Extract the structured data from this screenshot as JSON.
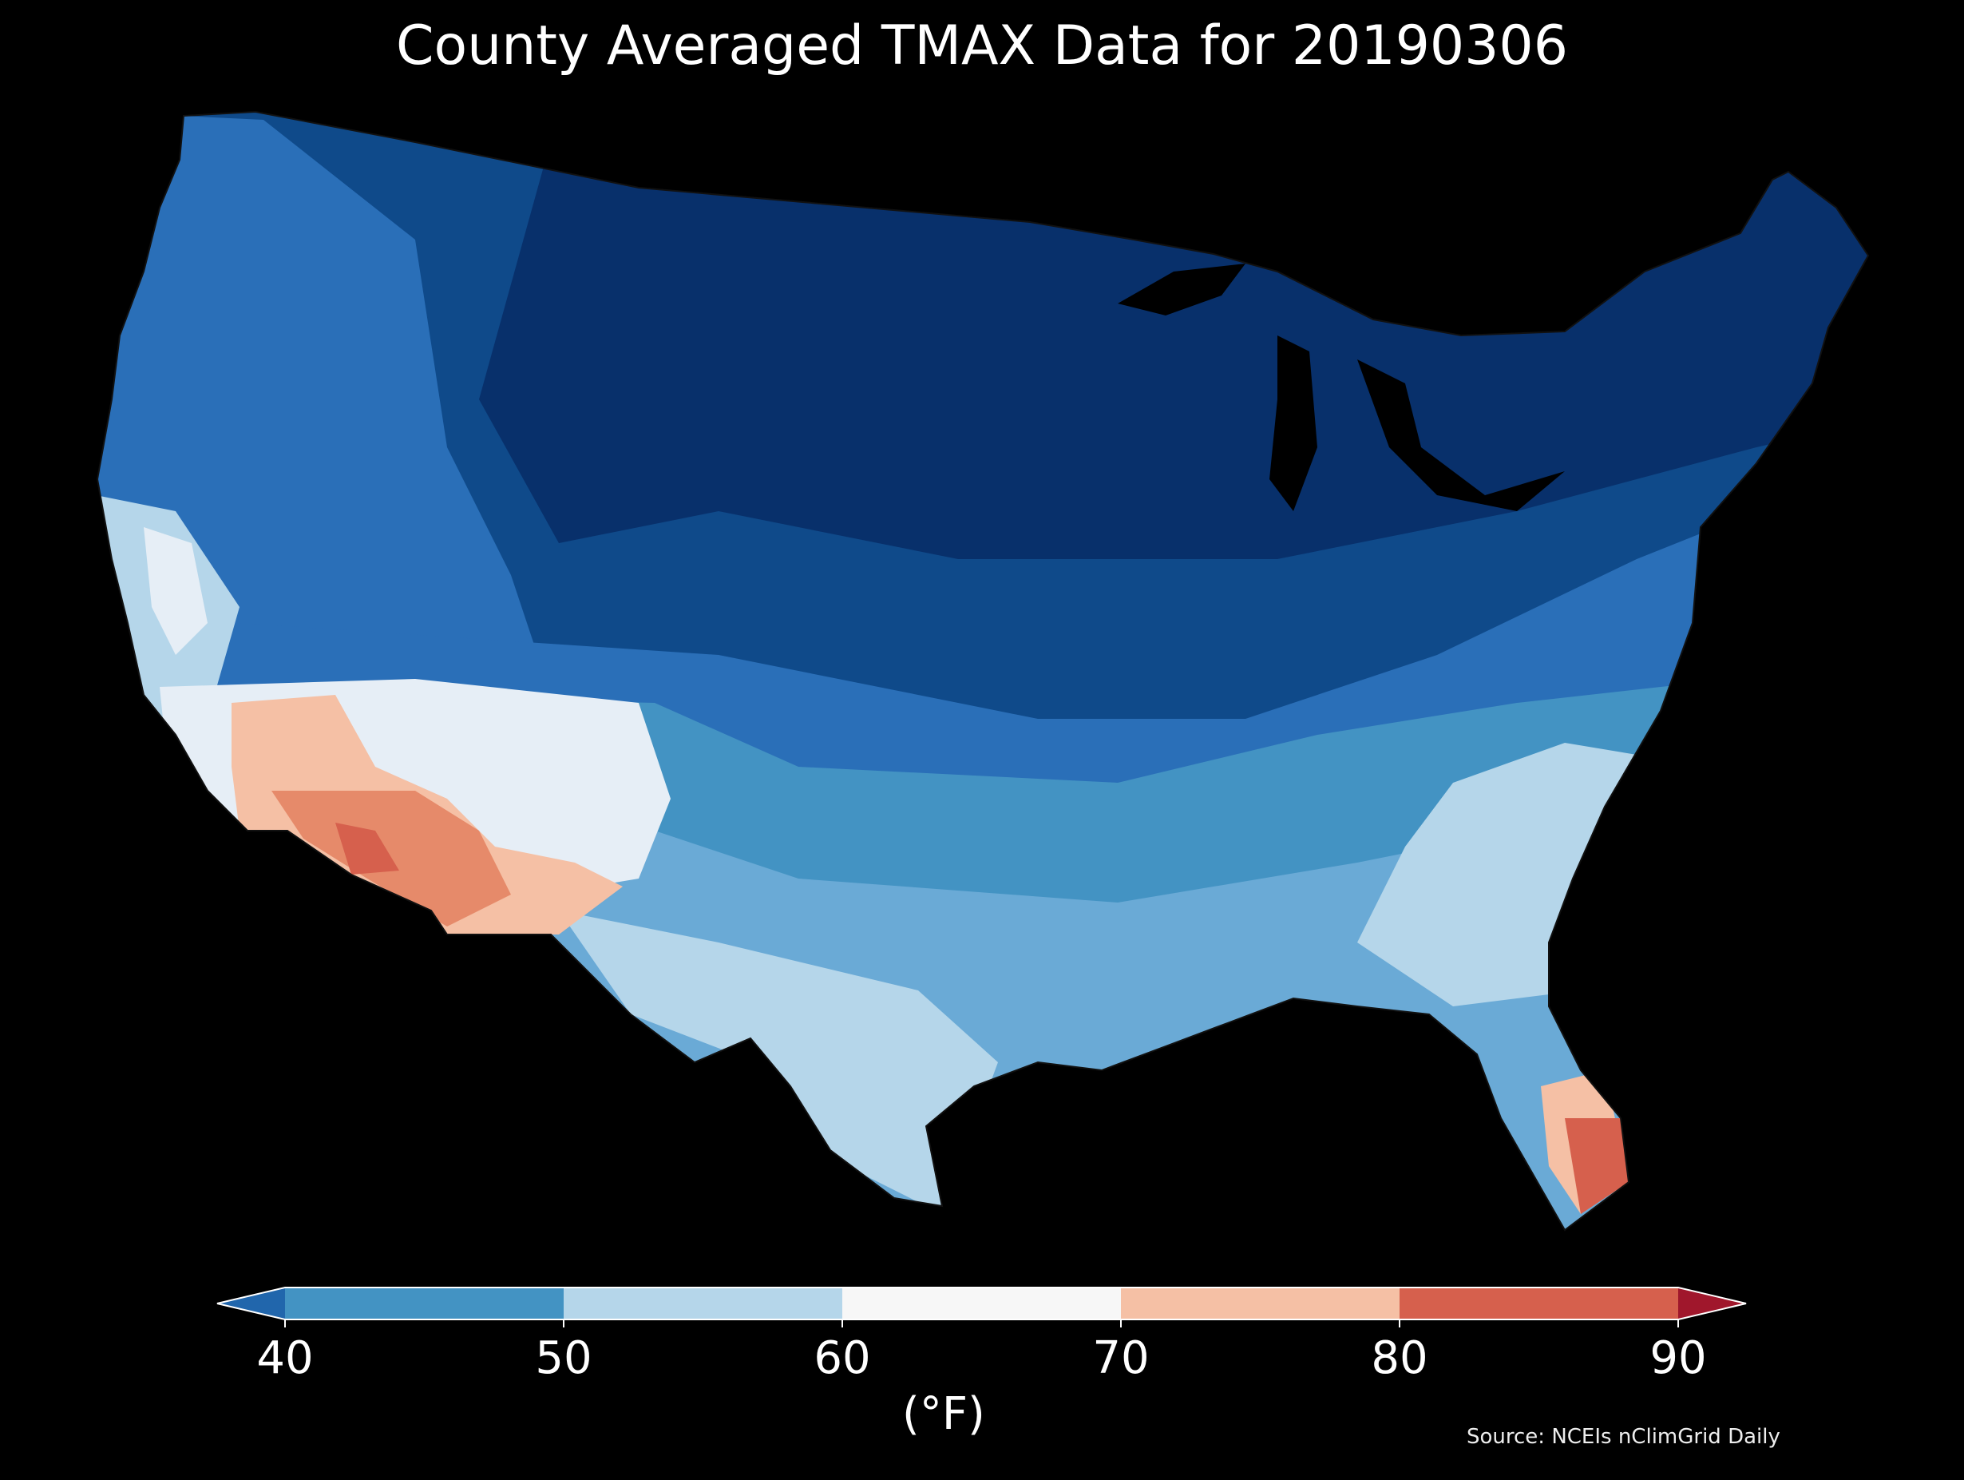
{
  "title": "County Averaged TMAX Data for 20190306",
  "colorbar": {
    "unit_label": "(°F)",
    "ticks": [
      "40",
      "50",
      "60",
      "70",
      "80",
      "90"
    ],
    "bins": [
      {
        "range": "<40",
        "color": "#2166ac"
      },
      {
        "range": "40-50",
        "color": "#4393c3"
      },
      {
        "range": "50-60",
        "color": "#b5d6ea"
      },
      {
        "range": "60-70",
        "color": "#f7f7f7"
      },
      {
        "range": "70-80",
        "color": "#f5c0a5"
      },
      {
        "range": "80-90",
        "color": "#d6604d"
      },
      {
        "range": ">90",
        "color": "#a0172c"
      }
    ]
  },
  "source": "Source: NCEIs nClimGrid Daily",
  "map_colors": {
    "deep_north": "#08306b",
    "north": "#0f4a8a",
    "mid_blue": "#2a6fb8",
    "light_blue": "#6aaad6",
    "pale_blue": "#b5d6ea",
    "near_white": "#e6eef6",
    "pale_orange": "#f5c0a5",
    "orange": "#e68a6a",
    "red": "#d6604d"
  }
}
